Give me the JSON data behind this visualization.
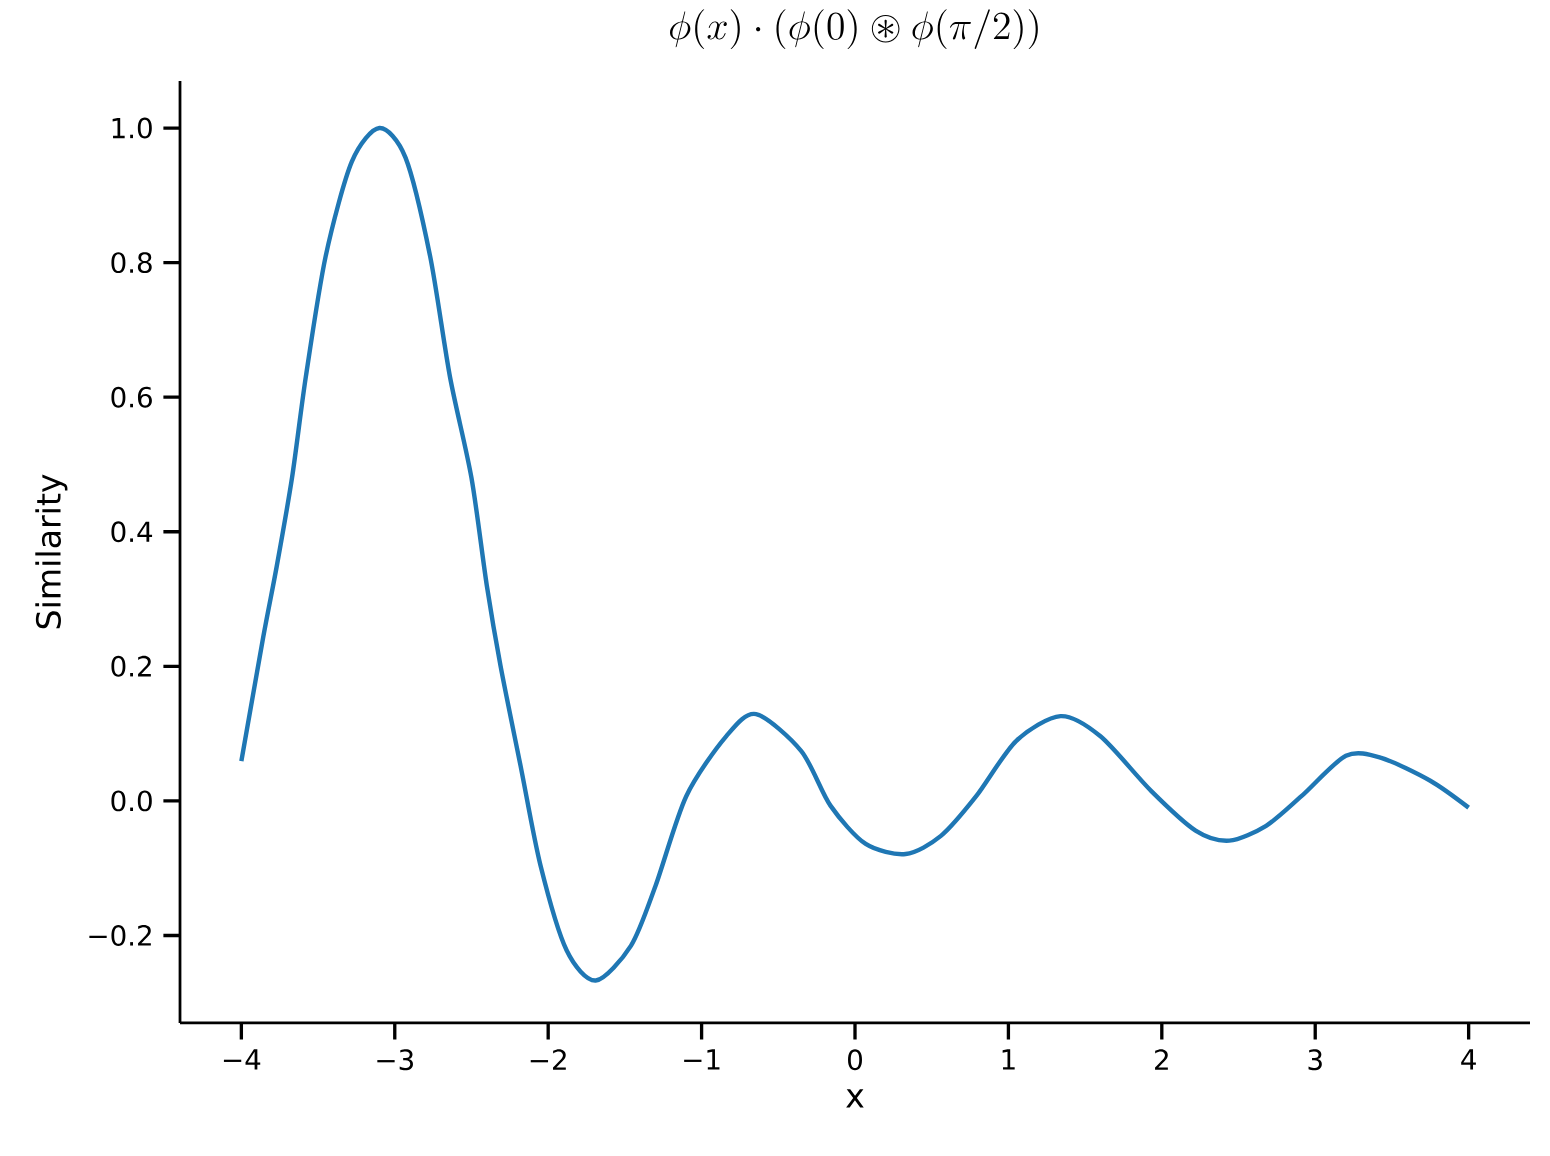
{
  "chart_data": {
    "type": "line",
    "title": "\\phi(x)\\cdot(\\phi(0)\\circledast\\phi(\\pi/2))",
    "xlabel": "x",
    "ylabel": "Similarity",
    "xlim": [
      -4.4,
      4.4
    ],
    "ylim": [
      -0.33,
      1.07
    ],
    "xticks": [
      {
        "value": -4,
        "label": "−4"
      },
      {
        "value": -3,
        "label": "−3"
      },
      {
        "value": -2,
        "label": "−2"
      },
      {
        "value": -1,
        "label": "−1"
      },
      0,
      1,
      2,
      3,
      4
    ],
    "yticks": [
      {
        "value": -0.2,
        "label": "−0.2"
      },
      {
        "value": 0,
        "label": "0.0"
      },
      {
        "value": 0.2,
        "label": "0.2"
      },
      {
        "value": 0.4,
        "label": "0.4"
      },
      {
        "value": 0.6,
        "label": "0.6"
      },
      {
        "value": 0.8,
        "label": "0.8"
      },
      {
        "value": 1,
        "label": "1.0"
      }
    ],
    "marker": "none",
    "line_style": "solid",
    "x": [
      -4,
      -3.857,
      -3.77,
      -3.67,
      -3.58,
      -3.45,
      -3.28,
      -3.1,
      -2.93,
      -2.77,
      -2.64,
      -2.5,
      -2.4,
      -2.31,
      -2.18,
      -2.05,
      -1.88,
      -1.69,
      -1.46,
      -1.3,
      -1.1,
      -0.84,
      -0.645,
      -0.35,
      -0.16,
      0.07,
      0.33,
      0.56,
      0.79,
      1.05,
      1.34,
      1.6,
      1.93,
      2.22,
      2.44,
      2.68,
      2.91,
      3.2,
      3.43,
      3.75,
      4.0
    ],
    "series": [
      {
        "color": "#1f77b4",
        "values": [
          0.059,
          0.244,
          0.348,
          0.48,
          0.63,
          0.81,
          0.95,
          1.0,
          0.956,
          0.81,
          0.63,
          0.48,
          0.32,
          0.2,
          0.052,
          -0.096,
          -0.222,
          -0.267,
          -0.215,
          -0.126,
          0.007,
          0.096,
          0.129,
          0.074,
          -0.007,
          -0.064,
          -0.079,
          -0.052,
          0.007,
          0.089,
          0.126,
          0.096,
          0.015,
          -0.044,
          -0.059,
          -0.037,
          0.007,
          0.067,
          0.064,
          0.03,
          -0.01
        ]
      }
    ]
  }
}
